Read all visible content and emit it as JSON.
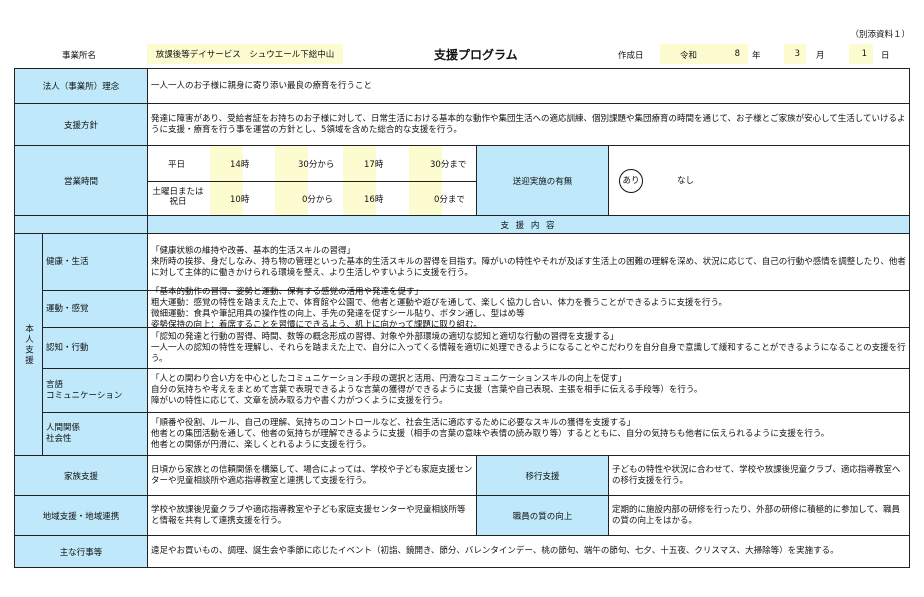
{
  "attachment_label": "（別添資料１）",
  "header": {
    "office_label": "事業所名",
    "office_name": "放課後等デイサービス　シュウエール下総中山",
    "title": "支援プログラム",
    "created_label": "作成日",
    "era": "令和",
    "year": "8",
    "year_unit": "年",
    "month": "3",
    "month_unit": "月",
    "day": "1",
    "day_unit": "日"
  },
  "philosophy": {
    "label": "法人（事業所）理念",
    "text": "一人一人のお子様に親身に寄り添い最良の療育を行うこと"
  },
  "policy": {
    "label": "支援方針",
    "text": "発達に障害があり、受給者証をお持ちのお子様に対して、日常生活における基本的な動作や集団生活への適応訓練、個別課題や集団療育の時間を通じて、お子様とご家族が安心して生活していけるように支援・療育を行う事を運営の方針とし、5領域を含めた総合的な支援を行う。"
  },
  "hours": {
    "label": "営業時間",
    "weekday": {
      "label": "平日",
      "start_h": "14",
      "h_unit": "時",
      "start_m": "30",
      "from": "分から",
      "end_h": "17",
      "end_m": "30",
      "until": "分まで"
    },
    "holiday": {
      "label": "土曜日または祝日",
      "start_h": "10",
      "h_unit": "時",
      "start_m": "0",
      "from": "分から",
      "end_h": "16",
      "end_m": "0",
      "until": "分まで"
    }
  },
  "transport": {
    "label": "送迎実施の有無",
    "yes": "あり",
    "no": "なし",
    "selected": "あり"
  },
  "content_header": "支 援 内 容",
  "personal_support": {
    "label": "本人支援",
    "items": [
      {
        "label": "健康・生活",
        "lines": [
          "「健康状態の維持や改善、基本的生活スキルの習得」",
          "来所時の挨拶、身だしなみ、持ち物の管理といった基本的生活スキルの習得を目指す。障がいの特性やそれが及ぼす生活上の困難の理解を深め、状況に応じて、自己の行動や感情を調整したり、他者に対して主体的に働きかけられる環境を整え、より生活しやすいように支援を行う。"
        ]
      },
      {
        "label": "運動・感覚",
        "lines": [
          "「基本的動作の習得、姿勢と運動、保有する感覚の活用や発達を促す」",
          "粗大運動：感覚の特性を踏まえた上で、体育館や公園で、他者と運動や遊びを通して、楽しく協力し合い、体力を養うことができるように支援を行う。",
          "微細運動：食具や筆記用具の操作性の向上、手先の発達を促すシール貼り、ボタン通し、型はめ等",
          "姿勢保持の向上：着席することを習慣にできるよう、机上に向かって課題に取り組む。"
        ]
      },
      {
        "label": "認知・行動",
        "lines": [
          "「認知の発達と行動の習得、時間、数等の概念形成の習得、対象や外部環境の適切な認知と適切な行動の習得を支援する」",
          "一人一人の認知の特性を理解し、それらを踏まえた上で、自分に入ってくる情報を適切に処理できるようになることやこだわりを自分自身で意識して緩和することができるようになることの支援を行う。"
        ]
      },
      {
        "label": "言語\nコミュニケーション",
        "lines": [
          "「人との関わり合い方を中心としたコミュニケーション手段の選択と活用、円滑なコミュニケーションスキルの向上を促す」",
          "自分の気持ちや考えをまとめて言葉で表現できるような言葉の獲得ができるように支援（言葉や自己表現、主張を相手に伝える手段等）を行う。",
          "障がいの特性に応じて、文章を読み取る力や書く力がつくように支援を行う。"
        ]
      },
      {
        "label": "人間関係\n社会性",
        "lines": [
          "「順番や役割、ルール、自己の理解、気持ちのコントロールなど、社会生活に適応するために必要なスキルの獲得を支援する」",
          "他者との集団活動を通して、他者の気持ちが理解できるように支援（相手の言葉の意味や表情の読み取り等）するとともに、自分の気持ちも他者に伝えられるように支援を行う。",
          "他者との関係が円滑に、楽しくとれるように支援を行う。"
        ]
      }
    ]
  },
  "family": {
    "label": "家族支援",
    "text": "日頃から家族との信頼関係を構築して、場合によっては、学校や子ども家庭支援センターや児童相談所や適応指導教室と連携して支援を行う。"
  },
  "transition": {
    "label": "移行支援",
    "text": "子どもの特性や状況に合わせて、学校や放課後児童クラブ、適応指導教室への移行支援を行う。"
  },
  "community": {
    "label": "地域支援・地域連携",
    "text": "学校や放課後児童クラブや適応指導教室や子ども家庭支援センターや児童相談所等と情報を共有して連携支援を行う。"
  },
  "staff": {
    "label": "職員の質の向上",
    "text": "定期的に施設内部の研修を行ったり、外部の研修に積極的に参加して、職員の質の向上をはかる。"
  },
  "events": {
    "label": "主な行事等",
    "text": "遠足やお買いもの、調理、誕生会や季節に応じたイベント（初詣、鏡開き、節分、バレンタインデー、桃の節句、端午の節句、七夕、十五夜、クリスマス、大掃除等）を実施する。"
  },
  "colors": {
    "label_bg": "#bfe9fb",
    "input_bg": "#fdfbd0"
  }
}
